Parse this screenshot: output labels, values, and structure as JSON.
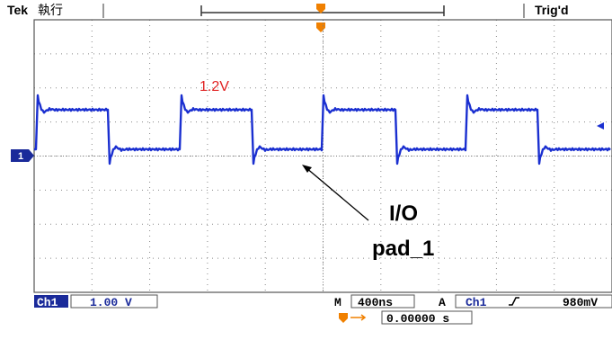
{
  "header": {
    "brand": "Tek",
    "status": "執行",
    "trigger_state": "Trig'd"
  },
  "screen": {
    "channel_marker": "1",
    "annotations": {
      "level": "1.2V",
      "signal_line1": "I/O",
      "signal_line2": "pad_1"
    }
  },
  "footer": {
    "channel": "Ch1",
    "volts_per_div": "1.00 V",
    "time_label": "M",
    "time_per_div": "400ns",
    "trigger_label": "A",
    "trigger_source": "Ch1",
    "trigger_level": "980mV",
    "position": "0.00000 s"
  }
}
